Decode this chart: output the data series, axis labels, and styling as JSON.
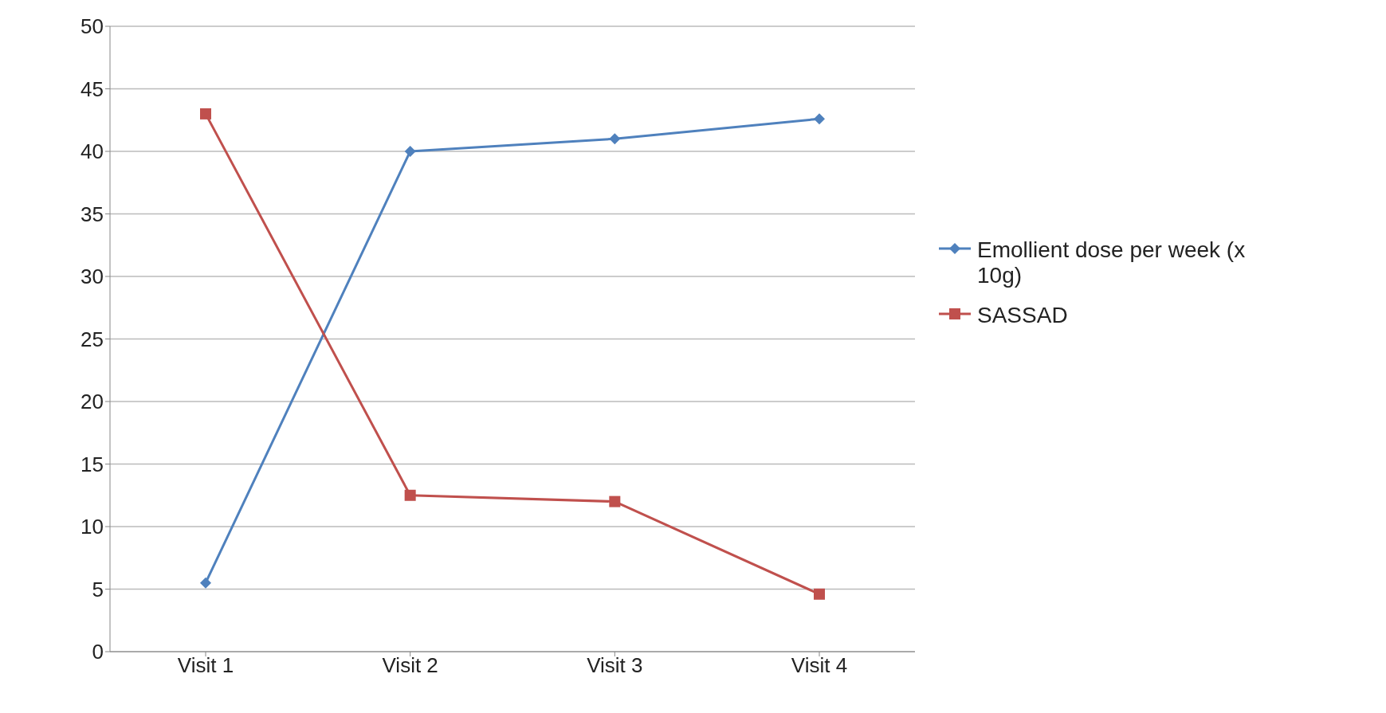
{
  "chart_data": {
    "type": "line",
    "categories": [
      "Visit 1",
      "Visit 2",
      "Visit 3",
      "Visit 4"
    ],
    "series": [
      {
        "name": "Emollient dose per week (x 10g)",
        "color": "#4f81bd",
        "marker": "diamond",
        "values": [
          5.5,
          40,
          41,
          42.6
        ]
      },
      {
        "name": "SASSAD",
        "color": "#c0504d",
        "marker": "square",
        "values": [
          43,
          12.5,
          12,
          4.6
        ]
      }
    ],
    "ylim": [
      0,
      50
    ],
    "yticks": [
      0,
      5,
      10,
      15,
      20,
      25,
      30,
      35,
      40,
      45,
      50
    ],
    "grid": "y",
    "legend": "right"
  }
}
